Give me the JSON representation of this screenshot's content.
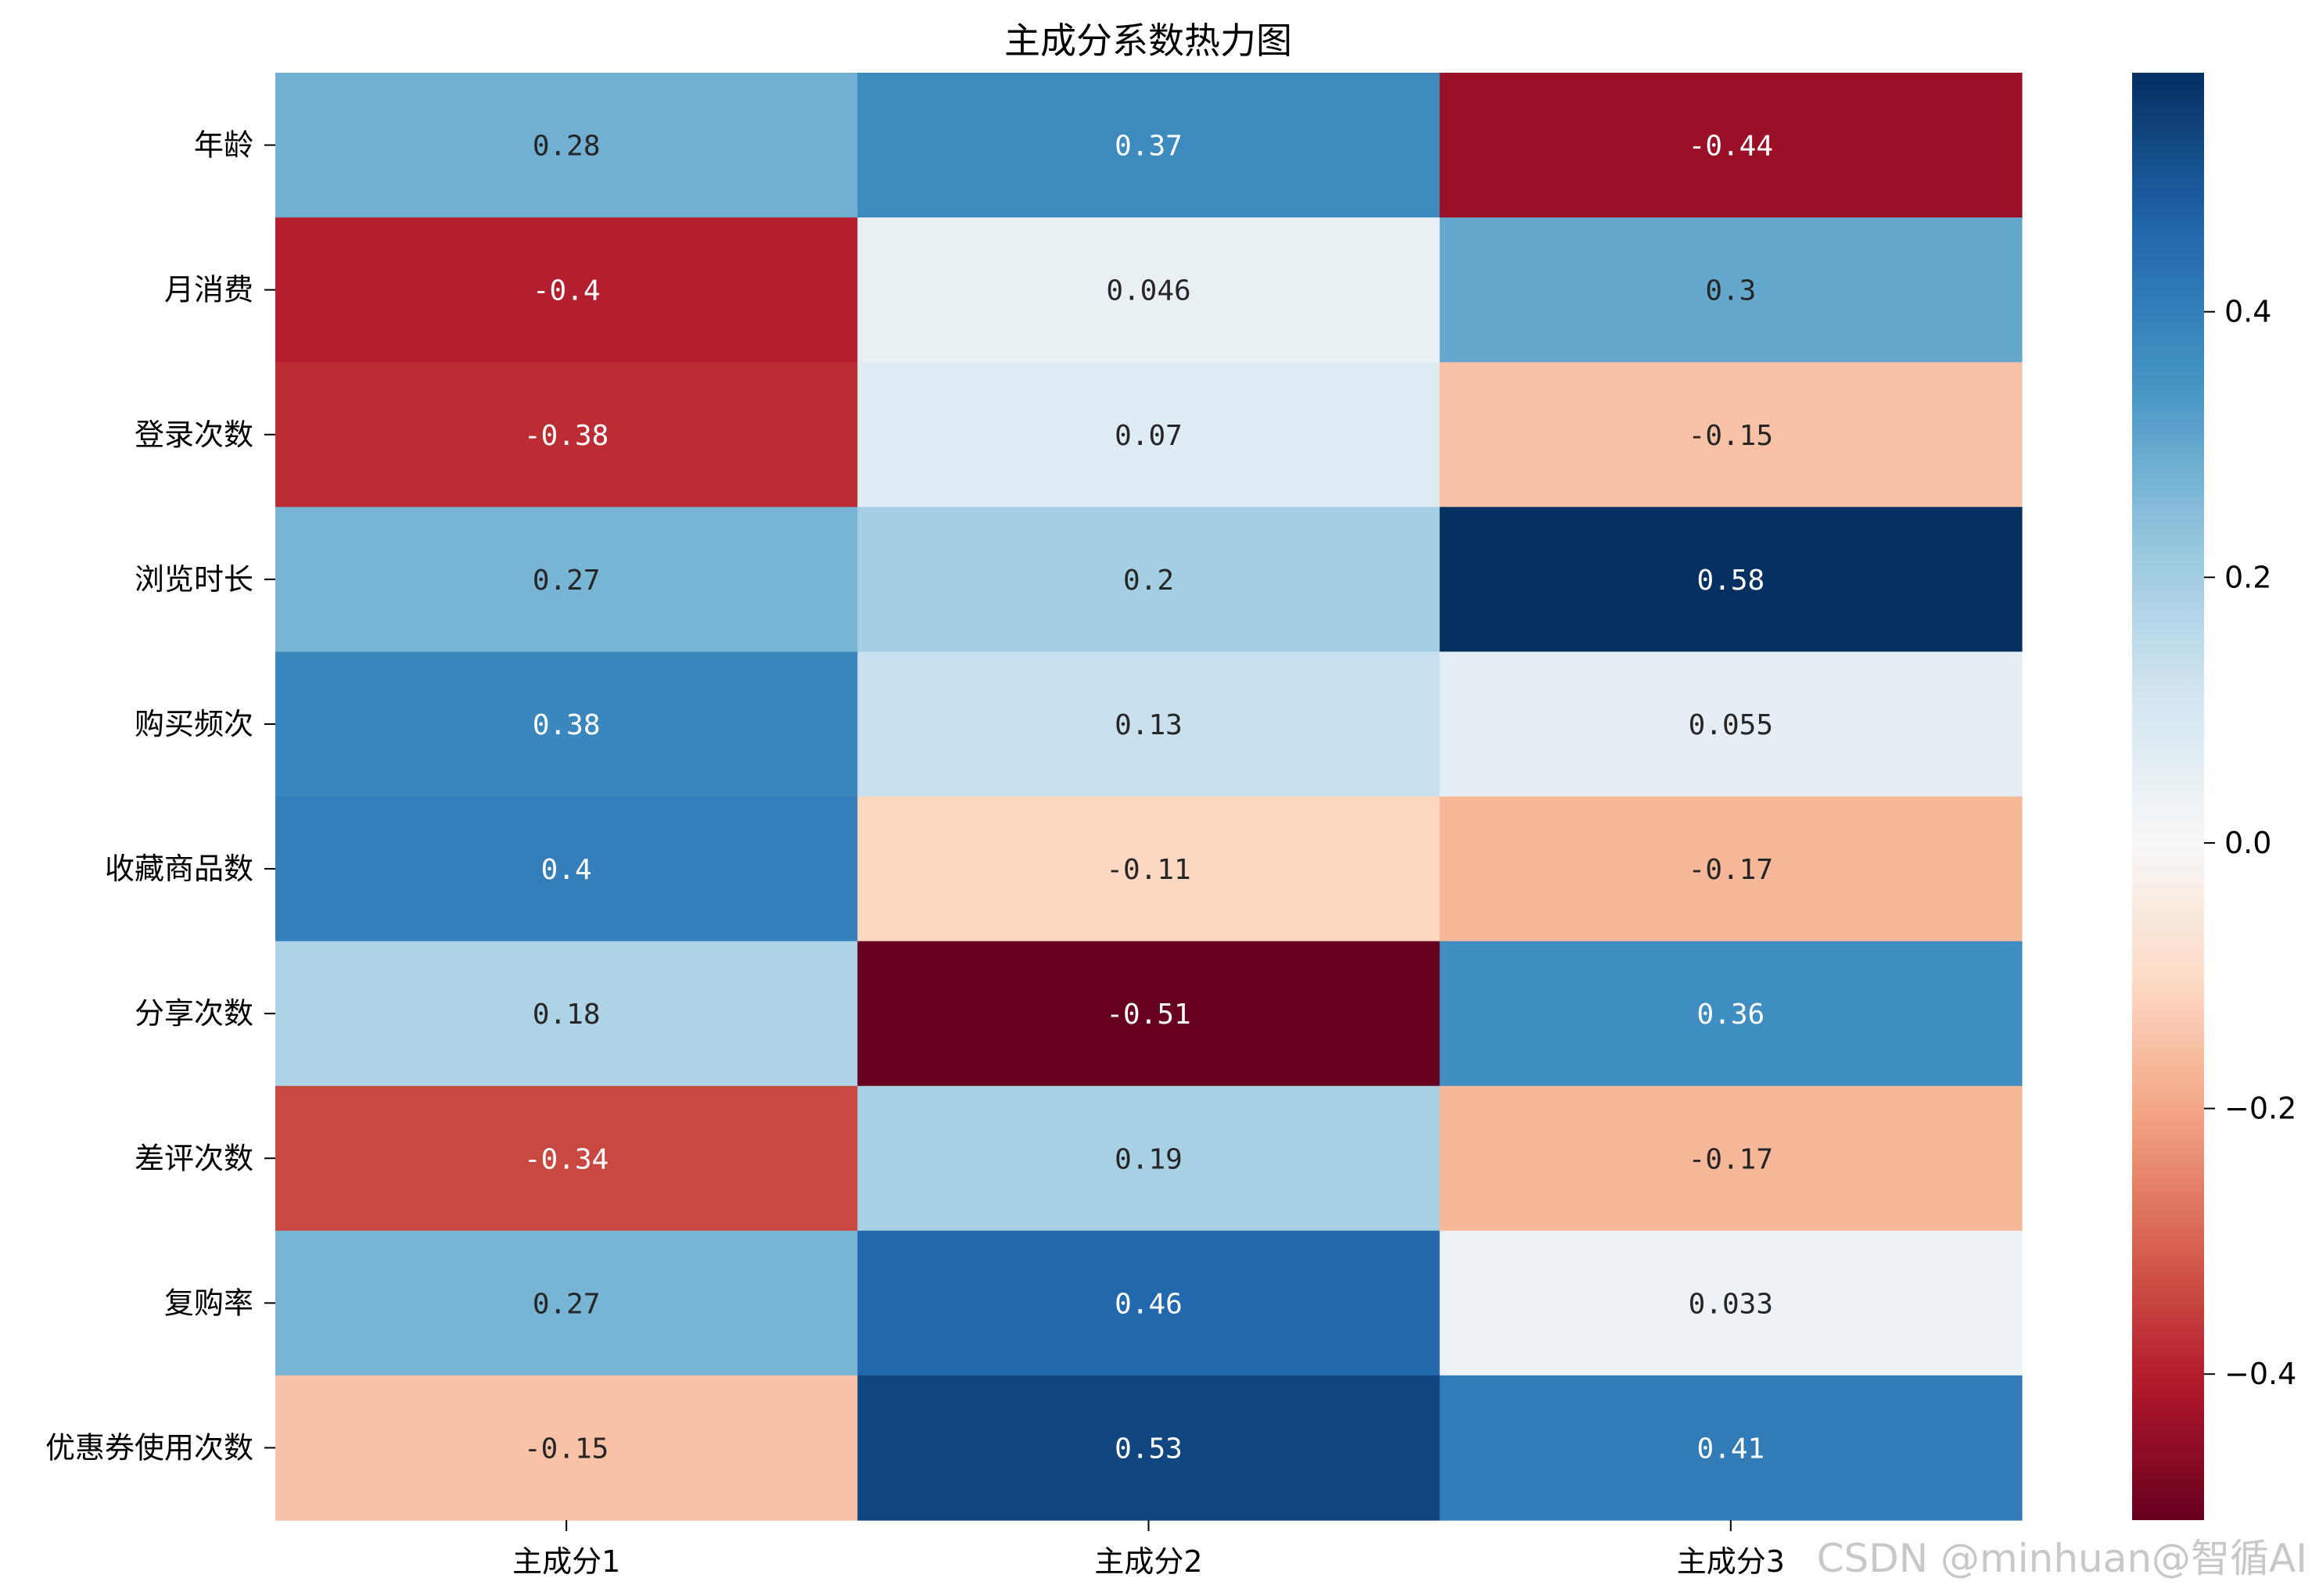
{
  "chart_data": {
    "type": "heatmap",
    "title": "主成分系数热力图",
    "x_labels": [
      "主成分1",
      "主成分2",
      "主成分3"
    ],
    "y_labels": [
      "年龄",
      "月消费",
      "登录次数",
      "浏览时长",
      "购买频次",
      "收藏商品数",
      "分享次数",
      "差评次数",
      "复购率",
      "优惠券使用次数"
    ],
    "values": [
      [
        0.28,
        0.37,
        -0.44
      ],
      [
        -0.4,
        0.046,
        0.3
      ],
      [
        -0.38,
        0.07,
        -0.15
      ],
      [
        0.27,
        0.2,
        0.58
      ],
      [
        0.38,
        0.13,
        0.055
      ],
      [
        0.4,
        -0.11,
        -0.17
      ],
      [
        0.18,
        -0.51,
        0.36
      ],
      [
        -0.34,
        0.19,
        -0.17
      ],
      [
        0.27,
        0.46,
        0.033
      ],
      [
        -0.15,
        0.53,
        0.41
      ]
    ],
    "cell_labels": [
      [
        "0.28",
        "0.37",
        "-0.44"
      ],
      [
        "-0.4",
        "0.046",
        "0.3"
      ],
      [
        "-0.38",
        "0.07",
        "-0.15"
      ],
      [
        "0.27",
        "0.2",
        "0.58"
      ],
      [
        "0.38",
        "0.13",
        "0.055"
      ],
      [
        "0.4",
        "-0.11",
        "-0.17"
      ],
      [
        "0.18",
        "-0.51",
        "0.36"
      ],
      [
        "-0.34",
        "0.19",
        "-0.17"
      ],
      [
        "0.27",
        "0.46",
        "0.033"
      ],
      [
        "-0.15",
        "0.53",
        "0.41"
      ]
    ],
    "colormap": "RdBu",
    "vmin": -0.51,
    "vmax": 0.58,
    "center": 0,
    "colorbar_ticks": [
      -0.4,
      -0.2,
      0.0,
      0.2,
      0.4
    ],
    "colorbar_tick_labels": [
      "−0.4",
      "−0.2",
      "0.0",
      "0.2",
      "0.4"
    ],
    "colormap_stops": [
      "#67001f",
      "#b2182b",
      "#d6604d",
      "#f4a582",
      "#fddbc7",
      "#f7f7f7",
      "#d1e5f0",
      "#92c5de",
      "#4393c3",
      "#2166ac",
      "#053061"
    ]
  },
  "watermark": "CSDN @minhuan@智循AI"
}
